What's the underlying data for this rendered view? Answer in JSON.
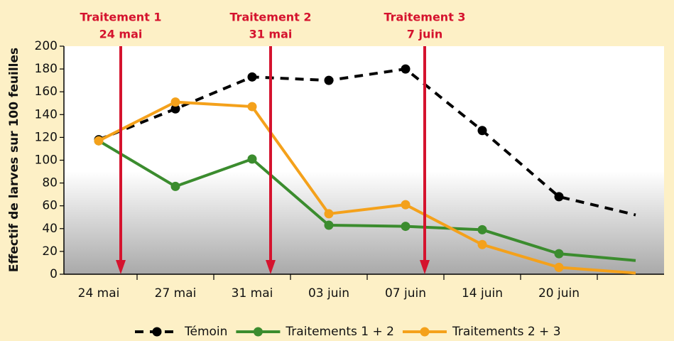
{
  "chart_data": {
    "type": "line",
    "ylabel": "Effectif de larves sur 100 feuilles",
    "categories": [
      "24 mai",
      "27 mai",
      "31 mai",
      "03 juin",
      "07 juin",
      "14 juin",
      "20 juin",
      null
    ],
    "series": [
      {
        "name": "Témoin",
        "color": "#000000",
        "dashed": true,
        "values": [
          118,
          145,
          173,
          170,
          180,
          126,
          68,
          52
        ]
      },
      {
        "name": "Traitements 1 + 2",
        "color": "#3b8c2e",
        "values": [
          117,
          77,
          101,
          43,
          42,
          39,
          18,
          12
        ]
      },
      {
        "name": "Traitements 2 + 3",
        "color": "#f4a11b",
        "values": [
          117,
          151,
          147,
          53,
          61,
          26,
          6,
          1
        ]
      }
    ],
    "annotations": [
      {
        "title": "Traitement 1",
        "date": "24 mai"
      },
      {
        "title": "Traitement 2",
        "date": "31 mai"
      },
      {
        "title": "Traitement 3",
        "date": "7 juin"
      }
    ],
    "annotation_color": "#d5132e",
    "ylim": [
      0,
      200
    ],
    "yticks": [
      0,
      20,
      40,
      60,
      80,
      100,
      120,
      140,
      160,
      180,
      200
    ],
    "legend": "bottom"
  }
}
